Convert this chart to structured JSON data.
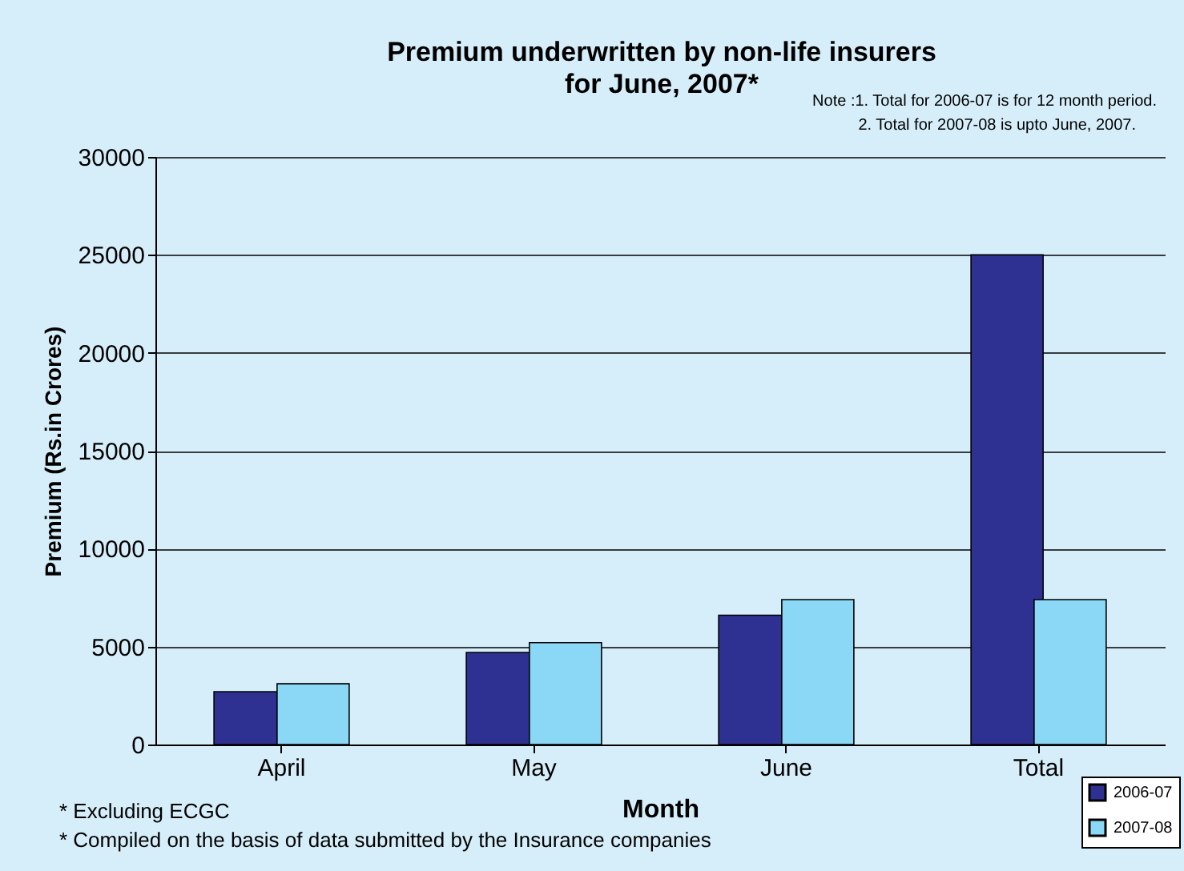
{
  "chart_data": {
    "type": "bar",
    "title": "Premium underwritten by non-life insurers\nfor June, 2007*",
    "xlabel": "Month",
    "ylabel": "Premium (Rs.in Crores)",
    "categories": [
      "April",
      "May",
      "June",
      "Total"
    ],
    "series": [
      {
        "name": "2006-07",
        "color": "#2e3192",
        "values": [
          2700,
          4700,
          6600,
          25000
        ]
      },
      {
        "name": "2007-08",
        "color": "#8ad8f6",
        "values": [
          3100,
          5200,
          7400,
          7400
        ]
      }
    ],
    "ylim": [
      0,
      30000
    ],
    "yticks": [
      0,
      5000,
      10000,
      15000,
      20000,
      25000,
      30000
    ],
    "grid": "y",
    "legend": "bottom right",
    "annotations": [
      "Note :1. Total  for 2006-07 is for 12 month period.",
      "2. Total for 2007-08 is upto June,  2007.",
      "* Excluding ECGC",
      "* Compiled on the basis of data submitted by the Insurance companies"
    ]
  }
}
